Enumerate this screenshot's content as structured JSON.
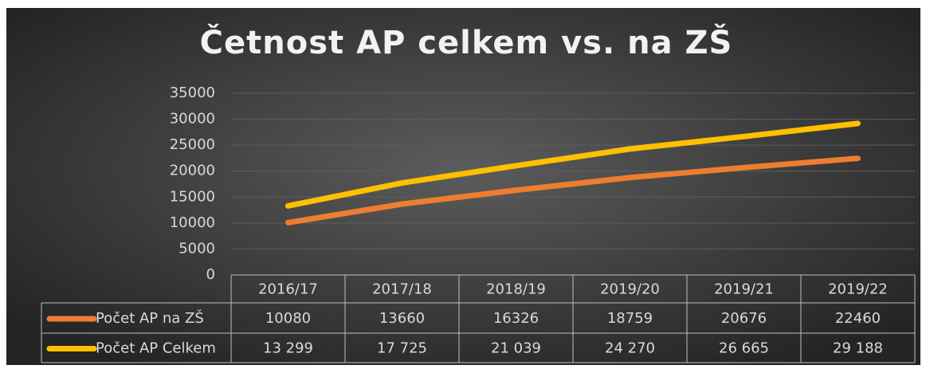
{
  "chart_data": {
    "type": "line",
    "title": "Četnost AP celkem vs. na ZŠ",
    "categories": [
      "2016/17",
      "2017/18",
      "2018/19",
      "2019/20",
      "2019/21",
      "2019/22"
    ],
    "series": [
      {
        "name": "Počet AP na ZŠ",
        "color": "#ed7d31",
        "values": [
          10080,
          13660,
          16326,
          18759,
          20676,
          22460
        ]
      },
      {
        "name": "Počet AP Celkem",
        "color": "#ffc000",
        "values": [
          13299,
          17725,
          21039,
          24270,
          26665,
          29188
        ],
        "value_labels": [
          "13 299",
          "17 725",
          "21 039",
          "24 270",
          "26 665",
          "29 188"
        ]
      }
    ],
    "ylim": [
      0,
      35000
    ],
    "yticks": [
      0,
      5000,
      10000,
      15000,
      20000,
      25000,
      30000,
      35000
    ],
    "grid": true
  }
}
